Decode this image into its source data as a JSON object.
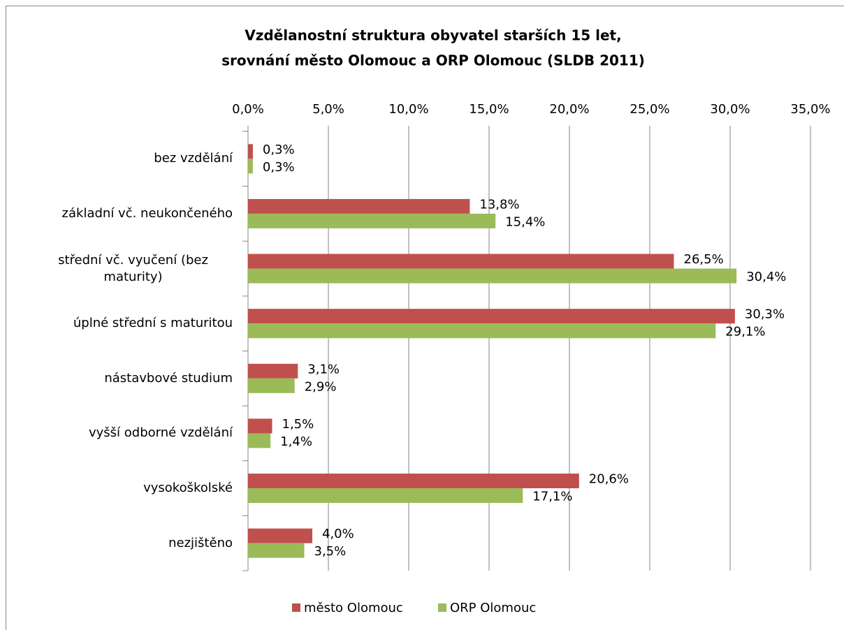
{
  "chart_data": {
    "type": "bar",
    "orientation": "horizontal",
    "title": [
      "Vzdělanostní struktura obyvatel starších 15 let,",
      "srovnání město Olomouc a ORP Olomouc (SLDB 2011)"
    ],
    "categories": [
      "bez vzdělání",
      "základní vč. neukončeného",
      "střední vč. vyučení (bez maturity)",
      "úplné střední s maturitou",
      "nástavbové studium",
      "vyšší odborné vzdělání",
      "vysokoškolské",
      "nezjištěno"
    ],
    "series": [
      {
        "name": "město Olomouc",
        "color": "#c0504d",
        "values": [
          0.3,
          13.8,
          26.5,
          30.3,
          3.1,
          1.5,
          20.6,
          4.0
        ],
        "value_labels": [
          "0,3%",
          "13,8%",
          "26,5%",
          "30,3%",
          "3,1%",
          "1,5%",
          "20,6%",
          "4,0%"
        ]
      },
      {
        "name": "ORP Olomouc",
        "color": "#9bbb59",
        "values": [
          0.3,
          15.4,
          30.4,
          29.1,
          2.9,
          1.4,
          17.1,
          3.5
        ],
        "value_labels": [
          "0,3%",
          "15,4%",
          "30,4%",
          "29,1%",
          "2,9%",
          "1,4%",
          "17,1%",
          "3,5%"
        ]
      }
    ],
    "xlim": [
      0,
      35
    ],
    "xticks": [
      {
        "value": 0,
        "label": "0,0%"
      },
      {
        "value": 5,
        "label": "5,0%"
      },
      {
        "value": 10,
        "label": "10,0%"
      },
      {
        "value": 15,
        "label": "15,0%"
      },
      {
        "value": 20,
        "label": "20,0%"
      },
      {
        "value": 25,
        "label": "25,0%"
      },
      {
        "value": 30,
        "label": "30,0%"
      },
      {
        "value": 35,
        "label": "35,0%"
      }
    ],
    "grid": true,
    "legend": "bottom"
  }
}
